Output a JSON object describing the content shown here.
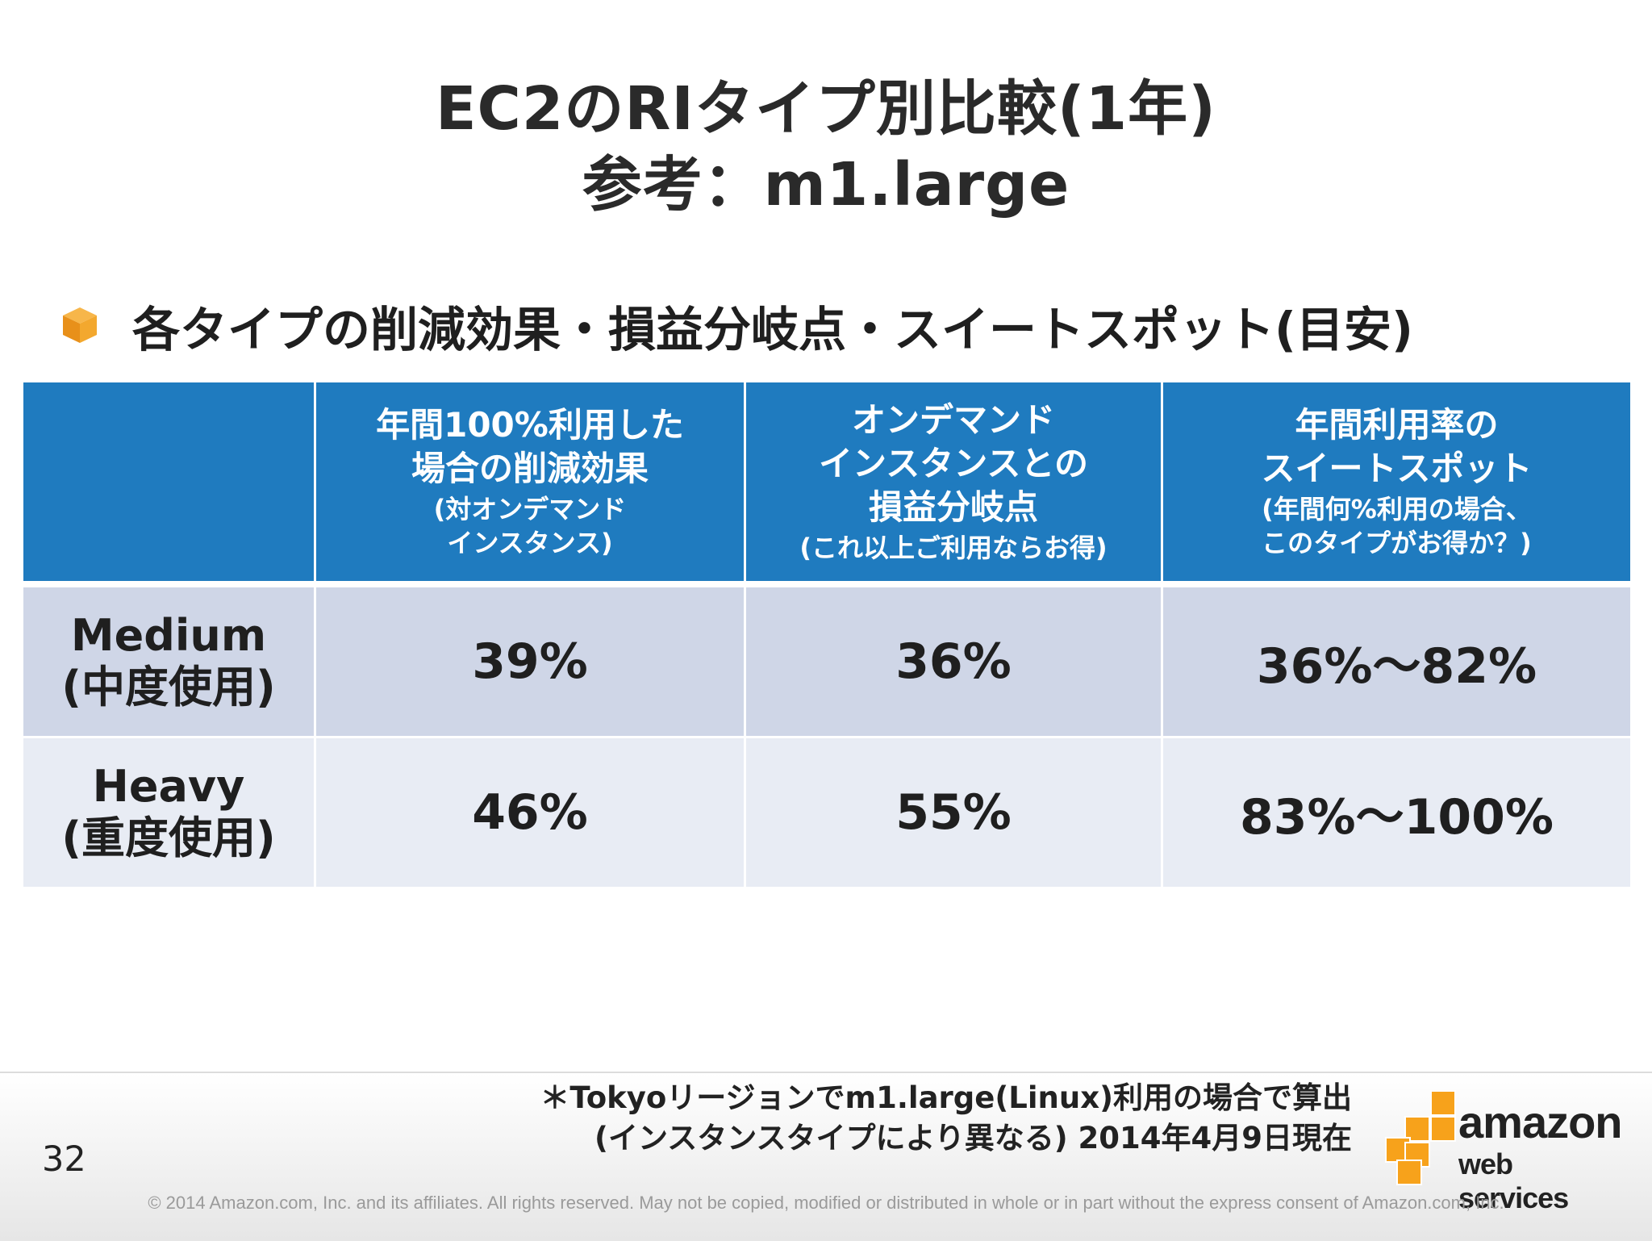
{
  "title": {
    "line1": "EC2のRIタイプ別比較(1年)",
    "line2": "参考：m1.large"
  },
  "bullet": {
    "icon": "cube-icon",
    "text": "各タイプの削減効果・損益分岐点・スイートスポット(目安)"
  },
  "table": {
    "headers": [
      {
        "main": "",
        "sub": ""
      },
      {
        "main": "年間100%利用した\n場合の削減効果",
        "sub": "(対オンデマンド\nインスタンス)"
      },
      {
        "main": "オンデマンド\nインスタンスとの\n損益分岐点",
        "sub": "(これ以上ご利用ならお得)"
      },
      {
        "main": "年間利用率の\nスイートスポット",
        "sub": "(年間何%利用の場合、\nこのタイプがお得か？)"
      }
    ],
    "rows": [
      {
        "label1": "Medium",
        "label2": "(中度使用)",
        "cells": [
          "39%",
          "36%",
          "36%～82%"
        ]
      },
      {
        "label1": "Heavy",
        "label2": "(重度使用)",
        "cells": [
          "46%",
          "55%",
          "83%～100%"
        ]
      }
    ],
    "colors": {
      "header_bg": "#1f7bbf",
      "row_medium_bg": "#cfd6e7",
      "row_heavy_bg": "#e8ecf4"
    }
  },
  "footer": {
    "note_line1": "＊Tokyoリージョンでm1.large(Linux)利用の場合で算出",
    "note_line2": "(インスタンスタイプにより異なる) 2014年4月9日現在",
    "page_number": "32",
    "copyright": "© 2014 Amazon.com, Inc. and its affiliates.  All rights reserved.  May not be copied, modified or distributed in whole or in part without the express consent of Amazon.com, Inc.",
    "logo": {
      "word1": "amazon",
      "word2": "web services",
      "color": "#f7a21b"
    }
  }
}
